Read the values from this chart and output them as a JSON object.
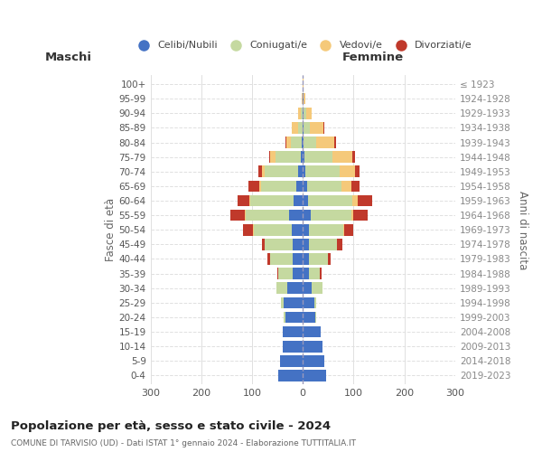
{
  "age_groups": [
    "0-4",
    "5-9",
    "10-14",
    "15-19",
    "20-24",
    "25-29",
    "30-34",
    "35-39",
    "40-44",
    "45-49",
    "50-54",
    "55-59",
    "60-64",
    "65-69",
    "70-74",
    "75-79",
    "80-84",
    "85-89",
    "90-94",
    "95-99",
    "100+"
  ],
  "birth_years": [
    "2019-2023",
    "2014-2018",
    "2009-2013",
    "2004-2008",
    "1999-2003",
    "1994-1998",
    "1989-1993",
    "1984-1988",
    "1979-1983",
    "1974-1978",
    "1969-1973",
    "1964-1968",
    "1959-1963",
    "1954-1958",
    "1949-1953",
    "1944-1948",
    "1939-1943",
    "1934-1938",
    "1929-1933",
    "1924-1928",
    "≤ 1923"
  ],
  "maschi": {
    "celibi": [
      48,
      45,
      40,
      40,
      35,
      38,
      30,
      20,
      20,
      20,
      22,
      28,
      18,
      12,
      10,
      4,
      3,
      1,
      1,
      0,
      0
    ],
    "coniugati": [
      0,
      0,
      0,
      0,
      2,
      5,
      22,
      28,
      45,
      55,
      75,
      85,
      85,
      70,
      65,
      50,
      20,
      8,
      3,
      0,
      0
    ],
    "vedovi": [
      0,
      0,
      0,
      0,
      0,
      0,
      0,
      0,
      0,
      0,
      1,
      2,
      3,
      4,
      5,
      10,
      10,
      12,
      5,
      2,
      0
    ],
    "divorziati": [
      0,
      0,
      0,
      0,
      0,
      0,
      0,
      3,
      5,
      5,
      20,
      28,
      22,
      22,
      8,
      3,
      2,
      1,
      0,
      0,
      0
    ]
  },
  "femmine": {
    "nubili": [
      45,
      42,
      38,
      35,
      25,
      22,
      18,
      12,
      12,
      12,
      12,
      15,
      10,
      8,
      5,
      3,
      2,
      1,
      1,
      1,
      0
    ],
    "coniugate": [
      0,
      0,
      0,
      0,
      2,
      5,
      20,
      22,
      38,
      55,
      68,
      80,
      88,
      68,
      68,
      55,
      25,
      12,
      5,
      1,
      0
    ],
    "vedove": [
      0,
      0,
      0,
      0,
      0,
      0,
      0,
      0,
      0,
      1,
      2,
      5,
      10,
      20,
      30,
      40,
      35,
      28,
      12,
      3,
      1
    ],
    "divorziate": [
      0,
      0,
      0,
      0,
      0,
      0,
      0,
      3,
      5,
      10,
      18,
      28,
      28,
      15,
      8,
      5,
      4,
      2,
      0,
      0,
      0
    ]
  },
  "colors": {
    "celibi": "#4472C4",
    "coniugati": "#C5D9A0",
    "vedovi": "#F5C97A",
    "divorziati": "#C0392B"
  },
  "xlim": 300,
  "title": "Popolazione per età, sesso e stato civile - 2024",
  "subtitle": "COMUNE DI TARVISIO (UD) - Dati ISTAT 1° gennaio 2024 - Elaborazione TUTTITALIA.IT",
  "xlabel_left": "Maschi",
  "xlabel_right": "Femmine",
  "ylabel_left": "Fasce di età",
  "ylabel_right": "Anni di nascita",
  "legend_labels": [
    "Celibi/Nubili",
    "Coniugati/e",
    "Vedovi/e",
    "Divorziati/e"
  ]
}
